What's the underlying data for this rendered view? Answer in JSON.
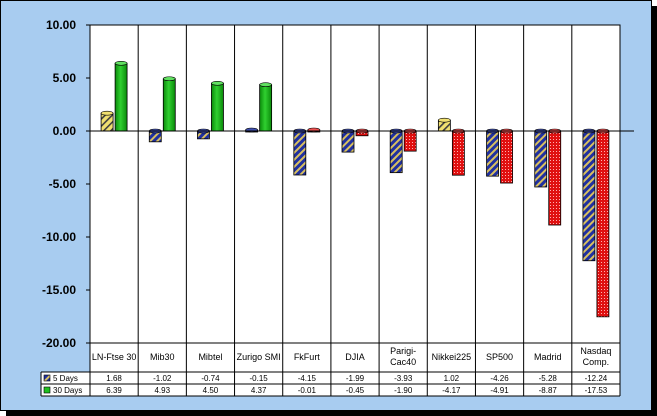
{
  "chart_data": {
    "type": "bar",
    "categories": [
      [
        "LN-Ftse 30"
      ],
      [
        "Mib30"
      ],
      [
        "Mibtel"
      ],
      [
        "Zurigo SMI"
      ],
      [
        "FkFurt"
      ],
      [
        "DJIA"
      ],
      [
        "Parigi-",
        "Cac40"
      ],
      [
        "Nikkei225"
      ],
      [
        "SP500"
      ],
      [
        "Madrid"
      ],
      [
        "Nasdaq",
        "Comp."
      ]
    ],
    "series": [
      {
        "name": "5 Days",
        "values": [
          1.68,
          -1.02,
          -0.74,
          -0.15,
          -4.15,
          -1.99,
          -3.93,
          1.02,
          -4.26,
          -5.28,
          -12.24
        ],
        "display": [
          "1.68",
          "-1.02",
          "-0.74",
          "-0.15",
          "-4.15",
          "-1.99",
          "-3.93",
          "1.02",
          "-4.26",
          "-5.28",
          "-12.24"
        ]
      },
      {
        "name": "30 Days",
        "values": [
          6.39,
          4.93,
          4.5,
          4.37,
          -0.01,
          -0.45,
          -1.9,
          -4.17,
          -4.91,
          -8.87,
          -17.53
        ],
        "display": [
          "6.39",
          "4.93",
          "4.50",
          "4.37",
          "-0.01",
          "-0.45",
          "-1.90",
          "-4.17",
          "-4.91",
          "-8.87",
          "-17.53"
        ]
      }
    ],
    "y_ticks": [
      "10.00",
      "5.00",
      "0.00",
      "-5.00",
      "-10.00",
      "-15.00",
      "-20.00"
    ],
    "ylim": [
      -20,
      10
    ],
    "grid": "vertical category dividers",
    "legend": "data table below chart",
    "colors": {
      "background": "#a8ccf0",
      "plot_area": "#ffffff",
      "positive_5d": "#f0e070",
      "positive_5d_stripe": "#404040",
      "negative_5d": "#2030a0",
      "negative_5d_stripe": "#d8c060",
      "series_30d_positive": "#20c020",
      "series_30d_negative": "#e01010"
    }
  }
}
